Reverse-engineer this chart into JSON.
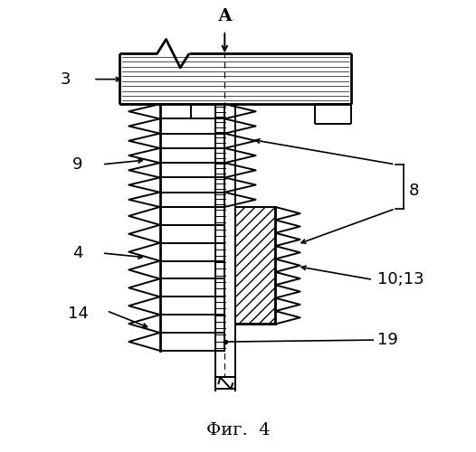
{
  "title": "Фиг.  4",
  "label_A": "А",
  "bg_color": "#ffffff",
  "line_color": "#000000",
  "lw": 1.4,
  "lw_thick": 2.0,
  "lw_thin": 0.7
}
